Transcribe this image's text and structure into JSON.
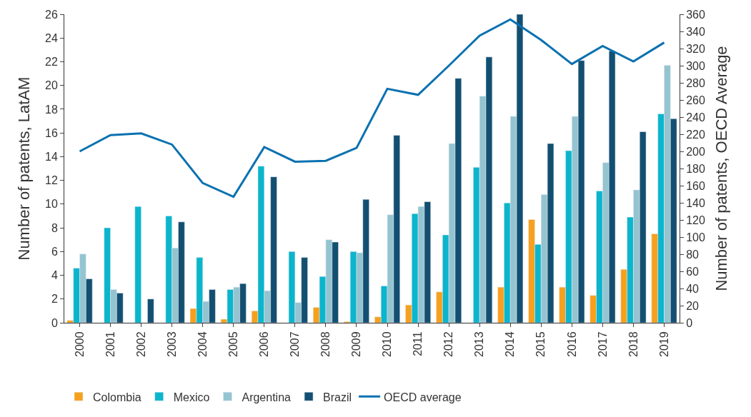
{
  "chart_data": {
    "type": "bar",
    "ylabel": "Number of patents, LatAM",
    "y2label": "Number of patents, OECD Average",
    "categories": [
      "2000",
      "2001",
      "2002",
      "2003",
      "2004",
      "2005",
      "2006",
      "2007",
      "2008",
      "2009",
      "2010",
      "2011",
      "2012",
      "2013",
      "2014",
      "2015",
      "2016",
      "2017",
      "2018",
      "2019"
    ],
    "series": [
      {
        "name": "Colombia",
        "color": "#f7a01e",
        "values": [
          0.2,
          null,
          null,
          null,
          1.2,
          0.3,
          1.0,
          null,
          1.3,
          0.1,
          0.5,
          1.5,
          2.6,
          null,
          3.0,
          8.7,
          3.0,
          2.3,
          4.5,
          7.5
        ]
      },
      {
        "name": "Mexico",
        "color": "#0bb5cc",
        "values": [
          4.6,
          8.0,
          9.8,
          9.0,
          5.5,
          2.8,
          13.2,
          6.0,
          3.9,
          6.0,
          3.1,
          9.2,
          7.4,
          13.1,
          10.1,
          6.6,
          14.5,
          11.1,
          8.9,
          17.6
        ]
      },
      {
        "name": "Argentina",
        "color": "#94c4d0",
        "values": [
          5.8,
          2.8,
          null,
          6.3,
          1.8,
          3.0,
          2.7,
          1.7,
          7.0,
          5.9,
          9.1,
          9.8,
          15.1,
          19.1,
          17.4,
          10.8,
          17.4,
          13.5,
          11.2,
          21.7
        ]
      },
      {
        "name": "Brazil",
        "color": "#134f70",
        "values": [
          3.7,
          2.5,
          2.0,
          8.5,
          2.8,
          3.3,
          12.3,
          5.5,
          6.8,
          10.4,
          15.8,
          10.2,
          20.6,
          22.4,
          26.0,
          15.1,
          22.1,
          22.9,
          16.1,
          17.2
        ]
      },
      {
        "name": "OECD average",
        "type": "line",
        "axis": "y2",
        "color": "#0a71b0",
        "values": [
          200,
          219,
          221,
          208,
          163,
          147,
          205,
          188,
          189,
          204,
          273,
          266,
          300,
          335,
          354,
          330,
          302,
          323,
          305,
          327
        ]
      }
    ],
    "ylim": [
      0,
      26
    ],
    "yticks": [
      0,
      2,
      4,
      6,
      8,
      10,
      12,
      14,
      16,
      18,
      20,
      22,
      24,
      26
    ],
    "y2lim": [
      0,
      360
    ],
    "y2ticks": [
      0,
      20,
      40,
      60,
      80,
      100,
      120,
      140,
      160,
      180,
      200,
      220,
      240,
      260,
      280,
      300,
      320,
      340,
      360
    ],
    "legend": "bottom",
    "marker": "none",
    "line_style": "solid"
  }
}
